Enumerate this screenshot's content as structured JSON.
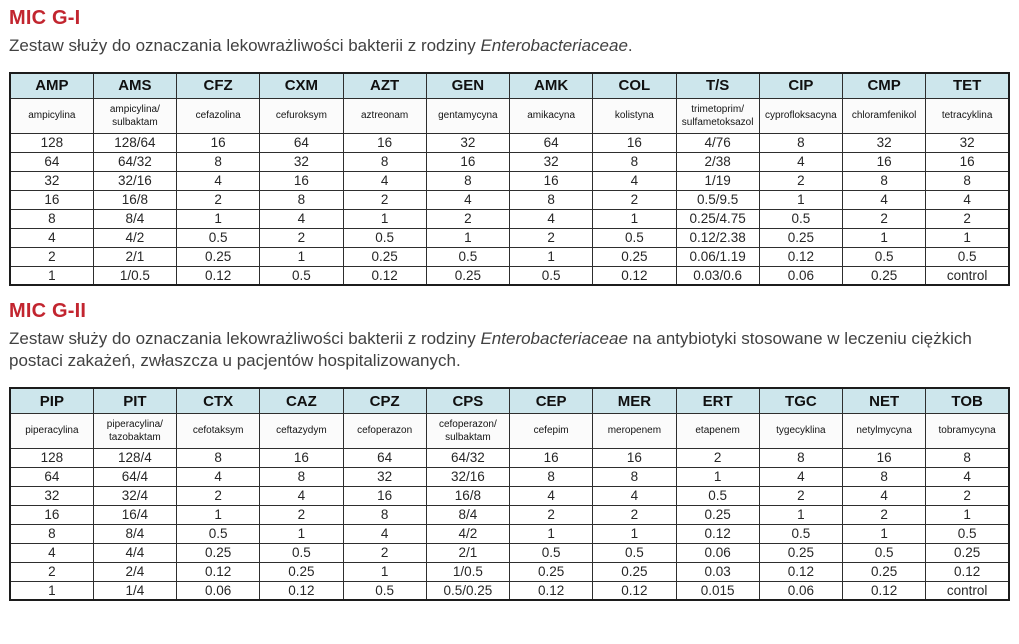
{
  "page": {
    "accent_red": "#c2252f",
    "table_header_bg": "#cde6ec"
  },
  "sections": [
    {
      "title": "MIC G-I",
      "desc": {
        "before": "Zestaw służy do oznaczania lekowrażliwości bakterii z rodziny ",
        "italic": "Enterobacteriaceae",
        "after": "."
      },
      "table": {
        "columns": [
          {
            "abbr": "AMP",
            "name": "ampicylina"
          },
          {
            "abbr": "AMS",
            "name": "ampicylina/sulbaktam"
          },
          {
            "abbr": "CFZ",
            "name": "cefazolina"
          },
          {
            "abbr": "CXM",
            "name": "cefuroksym"
          },
          {
            "abbr": "AZT",
            "name": "aztreonam"
          },
          {
            "abbr": "GEN",
            "name": "gentamycyna"
          },
          {
            "abbr": "AMK",
            "name": "amikacyna"
          },
          {
            "abbr": "COL",
            "name": "kolistyna"
          },
          {
            "abbr": "T/S",
            "name": "trimetoprim/sulfametoksazol"
          },
          {
            "abbr": "CIP",
            "name": "cyprofloksacyna"
          },
          {
            "abbr": "CMP",
            "name": "chloramfenikol"
          },
          {
            "abbr": "TET",
            "name": "tetracyklina"
          }
        ],
        "rows": [
          [
            "128",
            "128/64",
            "16",
            "64",
            "16",
            "32",
            "64",
            "16",
            "4/76",
            "8",
            "32",
            "32"
          ],
          [
            "64",
            "64/32",
            "8",
            "32",
            "8",
            "16",
            "32",
            "8",
            "2/38",
            "4",
            "16",
            "16"
          ],
          [
            "32",
            "32/16",
            "4",
            "16",
            "4",
            "8",
            "16",
            "4",
            "1/19",
            "2",
            "8",
            "8"
          ],
          [
            "16",
            "16/8",
            "2",
            "8",
            "2",
            "4",
            "8",
            "2",
            "0.5/9.5",
            "1",
            "4",
            "4"
          ],
          [
            "8",
            "8/4",
            "1",
            "4",
            "1",
            "2",
            "4",
            "1",
            "0.25/4.75",
            "0.5",
            "2",
            "2"
          ],
          [
            "4",
            "4/2",
            "0.5",
            "2",
            "0.5",
            "1",
            "2",
            "0.5",
            "0.12/2.38",
            "0.25",
            "1",
            "1"
          ],
          [
            "2",
            "2/1",
            "0.25",
            "1",
            "0.25",
            "0.5",
            "1",
            "0.25",
            "0.06/1.19",
            "0.12",
            "0.5",
            "0.5"
          ],
          [
            "1",
            "1/0.5",
            "0.12",
            "0.5",
            "0.12",
            "0.25",
            "0.5",
            "0.12",
            "0.03/0.6",
            "0.06",
            "0.25",
            "control"
          ]
        ]
      }
    },
    {
      "title": "MIC G-II",
      "desc": {
        "before": "Zestaw służy do oznaczania lekowrażliwości bakterii z rodziny ",
        "italic": "Enterobacteriaceae",
        "after": " na antybiotyki stosowane w leczeniu ciężkich postaci zakażeń, zwłaszcza u pacjentów hospitalizowanych."
      },
      "table": {
        "columns": [
          {
            "abbr": "PIP",
            "name": "piperacylina"
          },
          {
            "abbr": "PIT",
            "name": "piperacylina/tazobaktam"
          },
          {
            "abbr": "CTX",
            "name": "cefotaksym"
          },
          {
            "abbr": "CAZ",
            "name": "ceftazydym"
          },
          {
            "abbr": "CPZ",
            "name": "cefoperazon"
          },
          {
            "abbr": "CPS",
            "name": "cefoperazon/sulbaktam"
          },
          {
            "abbr": "CEP",
            "name": "cefepim"
          },
          {
            "abbr": "MER",
            "name": "meropenem"
          },
          {
            "abbr": "ERT",
            "name": "etapenem"
          },
          {
            "abbr": "TGC",
            "name": "tygecyklina"
          },
          {
            "abbr": "NET",
            "name": "netylmycyna"
          },
          {
            "abbr": "TOB",
            "name": "tobramycyna"
          }
        ],
        "rows": [
          [
            "128",
            "128/4",
            "8",
            "16",
            "64",
            "64/32",
            "16",
            "16",
            "2",
            "8",
            "16",
            "8"
          ],
          [
            "64",
            "64/4",
            "4",
            "8",
            "32",
            "32/16",
            "8",
            "8",
            "1",
            "4",
            "8",
            "4"
          ],
          [
            "32",
            "32/4",
            "2",
            "4",
            "16",
            "16/8",
            "4",
            "4",
            "0.5",
            "2",
            "4",
            "2"
          ],
          [
            "16",
            "16/4",
            "1",
            "2",
            "8",
            "8/4",
            "2",
            "2",
            "0.25",
            "1",
            "2",
            "1"
          ],
          [
            "8",
            "8/4",
            "0.5",
            "1",
            "4",
            "4/2",
            "1",
            "1",
            "0.12",
            "0.5",
            "1",
            "0.5"
          ],
          [
            "4",
            "4/4",
            "0.25",
            "0.5",
            "2",
            "2/1",
            "0.5",
            "0.5",
            "0.06",
            "0.25",
            "0.5",
            "0.25"
          ],
          [
            "2",
            "2/4",
            "0.12",
            "0.25",
            "1",
            "1/0.5",
            "0.25",
            "0.25",
            "0.03",
            "0.12",
            "0.25",
            "0.12"
          ],
          [
            "1",
            "1/4",
            "0.06",
            "0.12",
            "0.5",
            "0.5/0.25",
            "0.12",
            "0.12",
            "0.015",
            "0.06",
            "0.12",
            "control"
          ]
        ]
      }
    }
  ]
}
